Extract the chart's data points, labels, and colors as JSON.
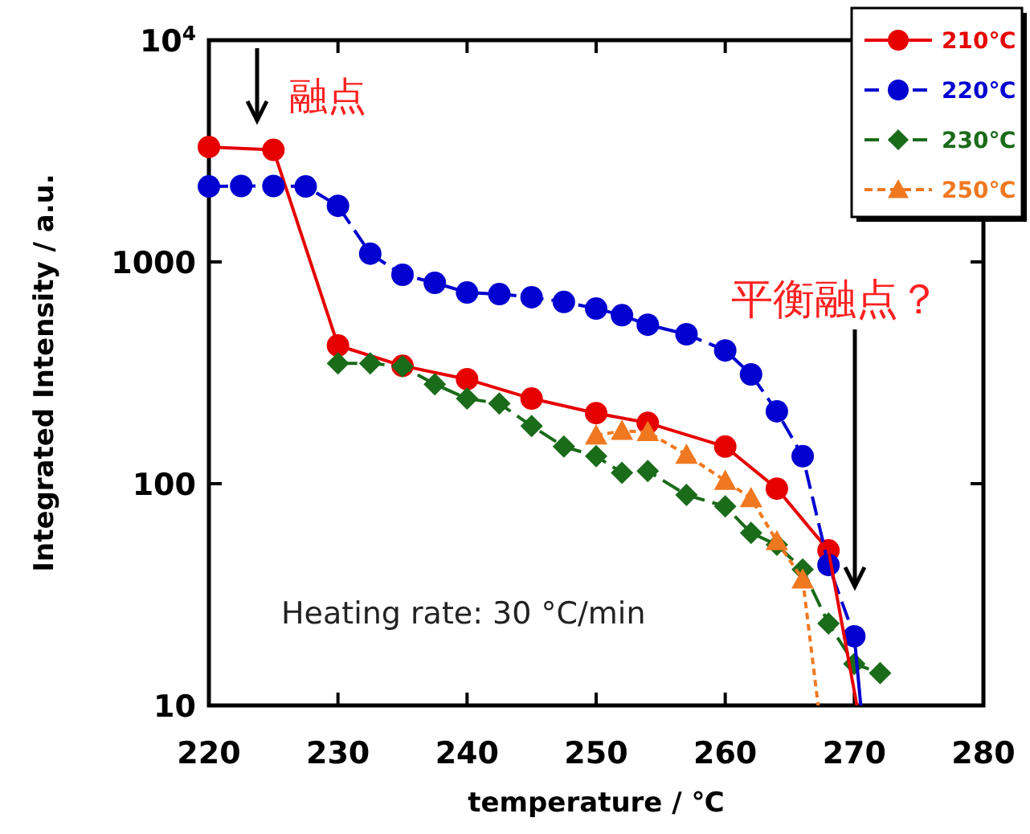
{
  "chart_data": {
    "type": "line",
    "xlabel": "temperature / ℃",
    "ylabel": "Integrated Intensity / a.u.",
    "xlim": [
      220,
      280
    ],
    "xticks": [
      220,
      230,
      240,
      250,
      260,
      270,
      280
    ],
    "ylim": [
      10,
      10000
    ],
    "yticks": [
      10,
      100,
      1000,
      {
        "value": 10000,
        "label": "10$^{4}$"
      }
    ],
    "log": "y",
    "legend": "top right",
    "series": [
      {
        "name": "210℃",
        "color": "#e60000",
        "marker": "circle",
        "line_style": "solid",
        "x": [
          220,
          225,
          230,
          235,
          240,
          245,
          250,
          254,
          260,
          264,
          268
        ],
        "values": [
          3300,
          3200,
          420,
          340,
          296,
          242,
          208,
          188,
          147,
          95,
          50
        ]
      },
      {
        "name": "220℃",
        "color": "#0000d0",
        "marker": "circle",
        "line_style": "dashed",
        "x": [
          220,
          222.5,
          225,
          227.5,
          230,
          232.5,
          235,
          237.5,
          240,
          242.5,
          245,
          247.5,
          250,
          252,
          254,
          257,
          260,
          262,
          264,
          266,
          268,
          270
        ],
        "values": [
          2190,
          2200,
          2200,
          2190,
          1790,
          1090,
          875,
          805,
          728,
          716,
          693,
          660,
          616,
          575,
          521,
          472,
          399,
          311,
          212,
          133,
          43,
          20.5
        ]
      },
      {
        "name": "230℃",
        "color": "#1a6b1a",
        "marker": "diamond",
        "line_style": "dashed",
        "x": [
          230,
          232.5,
          235,
          237.5,
          240,
          242.5,
          245,
          247.5,
          250,
          252,
          254,
          257,
          260,
          262,
          264,
          266,
          268,
          270,
          272
        ],
        "values": [
          349,
          349,
          338,
          281,
          242,
          230,
          182,
          147,
          133,
          112,
          114,
          89,
          79,
          60,
          53,
          41,
          23.4,
          15.4,
          14
        ]
      },
      {
        "name": "250℃",
        "color": "#f07820",
        "marker": "triangle",
        "line_style": "dotted",
        "x": [
          250,
          252,
          254,
          257,
          260,
          262,
          264,
          266
        ],
        "values": [
          165,
          173,
          171,
          135,
          103,
          86,
          55,
          37
        ]
      },
      {
        "type": "line",
        "color": "#e60000",
        "marker": "none",
        "line_style": "solid",
        "x": [
          268,
          270.2
        ],
        "values": [
          50,
          10
        ]
      },
      {
        "type": "line",
        "color": "#0000d0",
        "marker": "none",
        "line_style": "solid",
        "x": [
          270,
          270.5
        ],
        "values": [
          20.5,
          10
        ]
      },
      {
        "type": "line",
        "color": "#f07820",
        "marker": "none",
        "line_style": "dotted",
        "x": [
          266,
          267.2
        ],
        "values": [
          37,
          10
        ]
      }
    ],
    "annotations": [
      "融点",
      "平衡融点？",
      "Heating rate: 30 °C/min"
    ]
  }
}
